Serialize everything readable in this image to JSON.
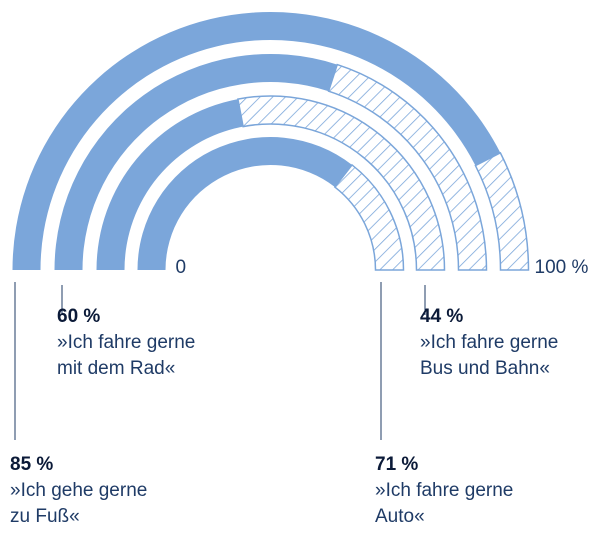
{
  "chart_data": {
    "type": "radial_bar",
    "categories": [
      "»Ich gehe gerne\nzu Fuß«",
      "»Ich fahre gerne\nmit dem Rad«",
      "»Ich fahre gerne\nBus und Bahn«",
      "»Ich fahre gerne\nAuto«"
    ],
    "values": [
      85,
      60,
      44,
      71
    ],
    "value_labels": [
      "85 %",
      "60 %",
      "44 %",
      "71 %"
    ],
    "color": "#7ba6da",
    "xlim": [
      0,
      100
    ],
    "xticks": [
      0,
      {
        "value": 100,
        "label": "100 %"
      }
    ]
  }
}
